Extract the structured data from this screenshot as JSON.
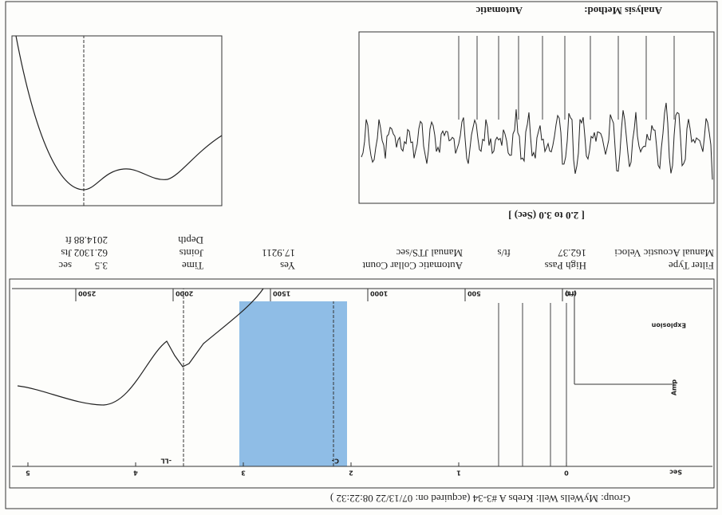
{
  "header": "Group: MyWells    Well: Krebs A #3-34 (acquired on: 07/13/22 08:22:32 )",
  "trace": {
    "sec_label": "Sec",
    "sec_ticks": [
      0,
      1,
      2,
      3,
      4,
      5
    ],
    "depth_label": "(ft)",
    "depth_ticks": [
      0,
      500,
      1000,
      1500,
      2000,
      2500
    ],
    "explosion_label": "Explosion",
    "amp_label": "Amp",
    "collar_label": "C-",
    "ll_label": "-LL"
  },
  "parameters": {
    "col1": [
      {
        "label": "Filter Type",
        "value": "High Pass"
      },
      {
        "label": "Manual Acoustic Veloci",
        "value": 162.37,
        "unit": "ft/s"
      }
    ],
    "col2": [
      {
        "label": "Automatic Collar Count",
        "value": "Yes"
      },
      {
        "label": "Manual JTS/sec",
        "value": 17.9211
      }
    ],
    "col3": [
      {
        "label": "Time",
        "value": 3.5,
        "unit": "sec"
      },
      {
        "label": "Joints",
        "value": 62.1302,
        "unit": "Jts"
      },
      {
        "label": "Depth",
        "value": 2014.88,
        "unit": "ft"
      }
    ]
  },
  "window_title": "[ 2.0 to 3.0 (Sec) ]",
  "analysis_method": {
    "label": "Analysis Method:",
    "value": "Automatic"
  }
}
